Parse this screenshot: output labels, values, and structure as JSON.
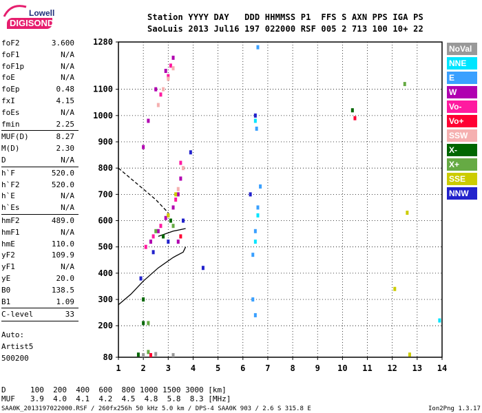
{
  "logo": {
    "brand_top": "Lowell",
    "brand_bottom": "DIGISONDE"
  },
  "header": {
    "line1": "Station YYYY DAY   DDD HHMMSS P1  FFS S AXN PPS IGA PS",
    "line2": "SaoLuis 2013 Jul16 197 022000 RSF 005 2 713 100 10+ 22"
  },
  "params": {
    "group1": [
      {
        "name": "foF2",
        "value": "3.600"
      },
      {
        "name": "foF1",
        "value": "N/A"
      },
      {
        "name": "foF1p",
        "value": "N/A"
      },
      {
        "name": "foE",
        "value": "N/A"
      },
      {
        "name": "foEp",
        "value": "0.48"
      },
      {
        "name": "fxI",
        "value": "4.15"
      },
      {
        "name": "foEs",
        "value": "N/A"
      },
      {
        "name": "fmin",
        "value": "2.25"
      }
    ],
    "group2": [
      {
        "name": "MUF(D)",
        "value": "8.27"
      },
      {
        "name": "M(D)",
        "value": "2.30"
      },
      {
        "name": "D",
        "value": "N/A"
      }
    ],
    "group3": [
      {
        "name": "h`F",
        "value": "520.0"
      },
      {
        "name": "h`F2",
        "value": "520.0"
      },
      {
        "name": "h`E",
        "value": "N/A"
      },
      {
        "name": "h`Es",
        "value": "N/A"
      }
    ],
    "group4": [
      {
        "name": "hmF2",
        "value": "489.0"
      },
      {
        "name": "hmF1",
        "value": "N/A"
      },
      {
        "name": "hmE",
        "value": "110.0"
      },
      {
        "name": "yF2",
        "value": "109.9"
      },
      {
        "name": "yF1",
        "value": "N/A"
      },
      {
        "name": "yE",
        "value": "20.0"
      },
      {
        "name": "B0",
        "value": "138.5"
      },
      {
        "name": "B1",
        "value": "1.09"
      }
    ],
    "group5": [
      {
        "name": "C-level",
        "value": "33"
      }
    ],
    "auto_label": "Auto:",
    "artist": "Artist5",
    "artist_version": "500200"
  },
  "legend": [
    {
      "label": "NoVal",
      "color": "#999999"
    },
    {
      "label": "NNE",
      "color": "#00e5ff"
    },
    {
      "label": "E",
      "color": "#3aa0ff"
    },
    {
      "label": "W",
      "color": "#b000b0"
    },
    {
      "label": "Vo-",
      "color": "#ff1aa0"
    },
    {
      "label": "Vo+",
      "color": "#ff0033"
    },
    {
      "label": "SSW",
      "color": "#f5b0b0"
    },
    {
      "label": "X-",
      "color": "#006600"
    },
    {
      "label": "X+",
      "color": "#66aa44"
    },
    {
      "label": "SSE",
      "color": "#cccc00"
    },
    {
      "label": "NNW",
      "color": "#2222cc"
    }
  ],
  "distance_table": {
    "row1_label": "D",
    "row1_values": "100  200  400  600  800 1000 1500 3000 [km]",
    "row2_label": "MUF",
    "row2_values": "3.9  4.0  4.1  4.2  4.5  4.8  5.8  8.3 [MHz]"
  },
  "footer": {
    "left": "SAA0K_2013197022000.RSF / 260fx256h 50 kHz 5.0 km / DPS-4 SAA0K 903 / 2.6 S 315.8 E",
    "right": "Ion2Png 1.3.17"
  },
  "chart_data": {
    "type": "scatter",
    "title": "",
    "xlabel": "",
    "ylabel": "",
    "x_ticks": [
      "1",
      "2",
      "3",
      "4",
      "5",
      "6",
      "7",
      "8",
      "9",
      "10",
      "11",
      "12",
      "13",
      "14"
    ],
    "y_ticks": [
      "80",
      "200",
      "300",
      "400",
      "500",
      "600",
      "700",
      "800",
      "900",
      "1000",
      "1100",
      "1280"
    ],
    "xlim": [
      1,
      14
    ],
    "ylim": [
      80,
      1280
    ],
    "grid": true,
    "legend_position": "right",
    "series": [
      {
        "name": "W",
        "color": "#b000b0",
        "points": [
          [
            2.3,
            520
          ],
          [
            2.6,
            560
          ],
          [
            2.9,
            610
          ],
          [
            3.2,
            650
          ],
          [
            3.4,
            700
          ],
          [
            3.5,
            760
          ],
          [
            2.5,
            1100
          ],
          [
            2.9,
            1170
          ],
          [
            3.2,
            1220
          ],
          [
            2.0,
            880
          ],
          [
            3.4,
            520
          ],
          [
            2.2,
            980
          ]
        ]
      },
      {
        "name": "Vo-",
        "color": "#ff1aa0",
        "points": [
          [
            2.1,
            500
          ],
          [
            2.4,
            540
          ],
          [
            2.7,
            580
          ],
          [
            3.0,
            620
          ],
          [
            3.3,
            680
          ],
          [
            3.5,
            820
          ],
          [
            2.7,
            1080
          ],
          [
            3.0,
            1150
          ],
          [
            3.1,
            1190
          ]
        ]
      },
      {
        "name": "SSW",
        "color": "#f5b0b0",
        "points": [
          [
            2.6,
            1040
          ],
          [
            2.8,
            1100
          ],
          [
            3.0,
            1140
          ],
          [
            3.2,
            1180
          ],
          [
            3.4,
            720
          ],
          [
            3.6,
            800
          ]
        ]
      },
      {
        "name": "NNW",
        "color": "#2222cc",
        "points": [
          [
            2.4,
            480
          ],
          [
            3.0,
            520
          ],
          [
            3.6,
            600
          ],
          [
            3.9,
            860
          ],
          [
            6.3,
            700
          ],
          [
            6.5,
            1000
          ],
          [
            1.9,
            380
          ],
          [
            4.4,
            420
          ]
        ]
      },
      {
        "name": "E",
        "color": "#3aa0ff",
        "points": [
          [
            6.4,
            470
          ],
          [
            6.5,
            560
          ],
          [
            6.6,
            650
          ],
          [
            6.7,
            730
          ],
          [
            6.55,
            950
          ],
          [
            6.6,
            1260
          ],
          [
            6.4,
            300
          ],
          [
            6.5,
            240
          ]
        ]
      },
      {
        "name": "NNE",
        "color": "#00e5ff",
        "points": [
          [
            6.5,
            520
          ],
          [
            6.6,
            620
          ],
          [
            6.5,
            980
          ],
          [
            13.9,
            220
          ]
        ]
      },
      {
        "name": "X-",
        "color": "#006600",
        "points": [
          [
            2.0,
            300
          ],
          [
            2.0,
            210
          ],
          [
            2.8,
            540
          ],
          [
            3.1,
            600
          ],
          [
            1.8,
            90
          ],
          [
            10.4,
            1020
          ]
        ]
      },
      {
        "name": "X+",
        "color": "#66aa44",
        "points": [
          [
            2.2,
            210
          ],
          [
            2.5,
            560
          ],
          [
            3.2,
            580
          ],
          [
            12.5,
            1120
          ],
          [
            2.2,
            100
          ]
        ]
      },
      {
        "name": "SSE",
        "color": "#cccc00",
        "points": [
          [
            3.0,
            620
          ],
          [
            3.3,
            700
          ],
          [
            12.6,
            630
          ],
          [
            12.7,
            90
          ],
          [
            12.1,
            340
          ]
        ]
      },
      {
        "name": "Vo+",
        "color": "#ff0033",
        "points": [
          [
            10.5,
            990
          ],
          [
            2.3,
            88
          ],
          [
            3.5,
            540
          ]
        ]
      },
      {
        "name": "NoVal",
        "color": "#999999",
        "points": [
          [
            2.0,
            88
          ],
          [
            2.5,
            92
          ],
          [
            3.2,
            88
          ]
        ]
      }
    ]
  }
}
